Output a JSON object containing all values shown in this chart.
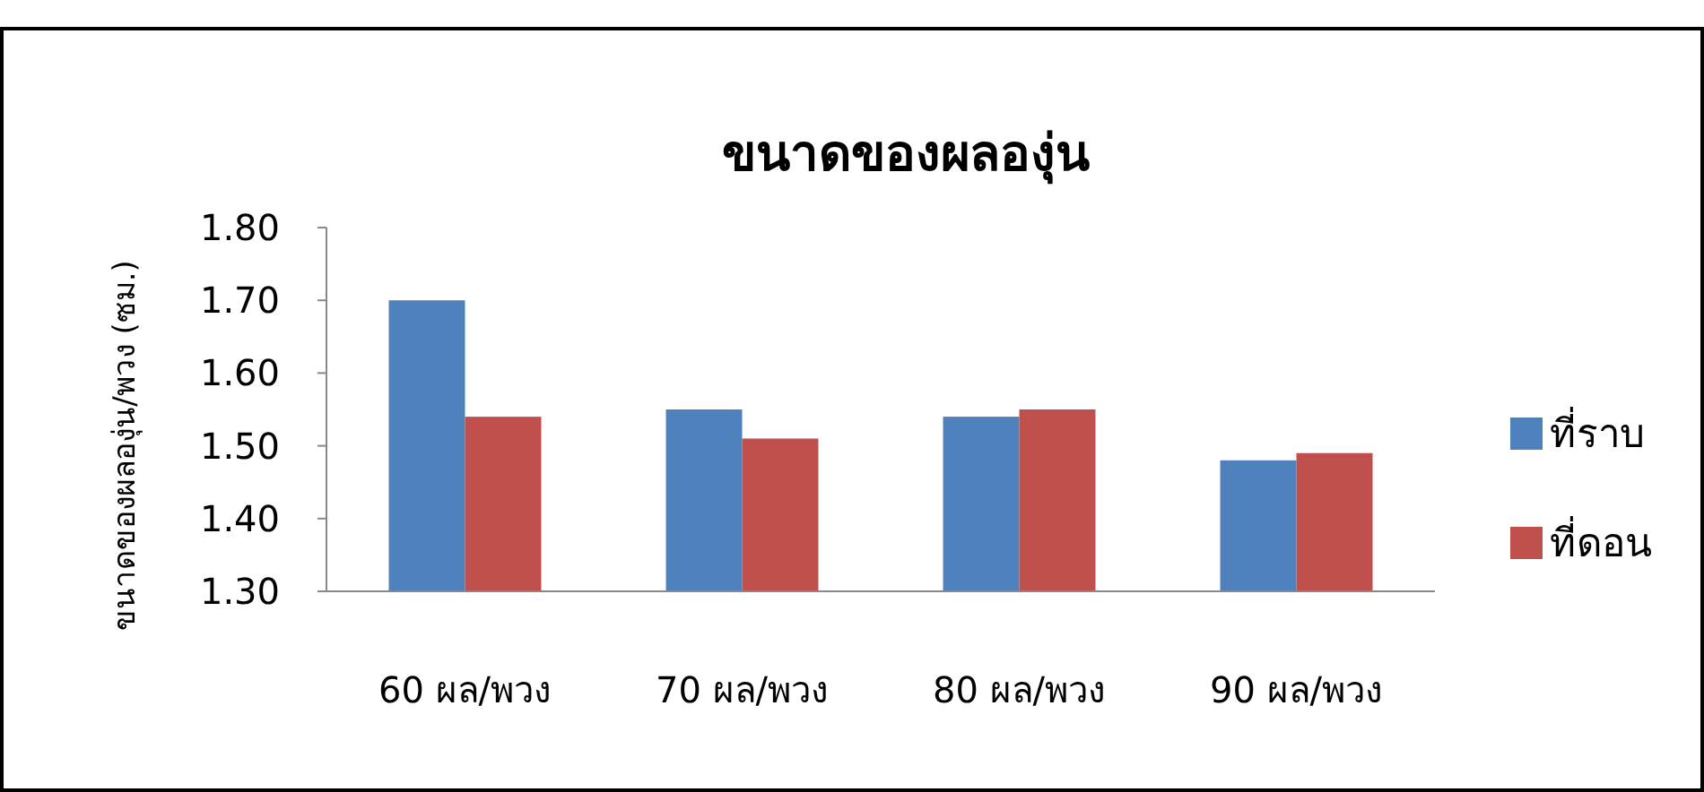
{
  "chart_data": {
    "type": "bar",
    "title": "ขนาดของผลองุ่น",
    "ylabel": "ขนาดของผลองุ่น/พวง (ซม.)",
    "categories": [
      "60 ผล/พวง",
      "70 ผล/พวง",
      "80 ผล/พวง",
      "90 ผล/พวง"
    ],
    "series": [
      {
        "name": "ที่ราบ",
        "color": "#4f81bd",
        "values": [
          1.7,
          1.55,
          1.54,
          1.48
        ]
      },
      {
        "name": "ที่ดอน",
        "color": "#c0504d",
        "values": [
          1.54,
          1.51,
          1.55,
          1.49
        ]
      }
    ],
    "ylim": [
      1.3,
      1.8
    ],
    "yticks": [
      {
        "value": 1.3,
        "label": "1.30"
      },
      {
        "value": 1.4,
        "label": "1.40"
      },
      {
        "value": 1.5,
        "label": "1.50"
      },
      {
        "value": 1.6,
        "label": "1.60"
      },
      {
        "value": 1.7,
        "label": "1.70"
      },
      {
        "value": 1.8,
        "label": "1.80"
      }
    ],
    "grid": false,
    "legend": "right"
  }
}
